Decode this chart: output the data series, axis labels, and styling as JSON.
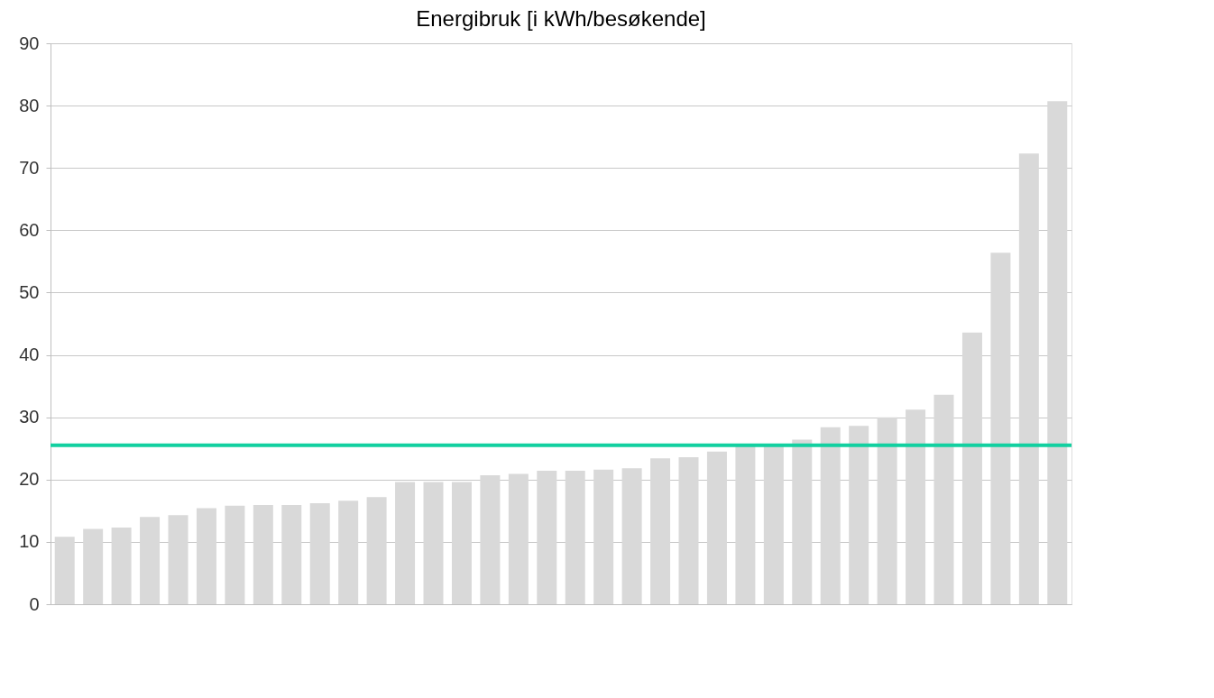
{
  "chart_data": {
    "type": "bar",
    "title": "Energibruk [i kWh/besøkende]",
    "categories": [
      null,
      null,
      null,
      null,
      null,
      null,
      null,
      null,
      null,
      null,
      null,
      null,
      null,
      null,
      null,
      null,
      null,
      null,
      null,
      null,
      null,
      null,
      null,
      null,
      null,
      null,
      null,
      null,
      null,
      null,
      null,
      null,
      null,
      null,
      null,
      null
    ],
    "values": [
      10.8,
      12.1,
      12.3,
      14.0,
      14.3,
      15.4,
      15.8,
      15.9,
      15.9,
      16.2,
      16.6,
      17.2,
      19.6,
      19.6,
      19.6,
      20.7,
      20.9,
      21.4,
      21.4,
      21.6,
      21.8,
      23.4,
      23.6,
      24.5,
      25.6,
      25.6,
      26.4,
      28.4,
      28.6,
      30.0,
      31.2,
      33.6,
      43.6,
      56.4,
      72.3,
      80.7
    ],
    "color": "#d9d9d9",
    "ylim": [
      0,
      90
    ],
    "yticks": [
      0,
      10,
      20,
      30,
      40,
      50,
      60,
      70,
      80,
      90
    ],
    "grid": "y",
    "ref_lines": [
      {
        "axis": "y",
        "value": 25.5,
        "color": "#12d0a0"
      }
    ]
  }
}
